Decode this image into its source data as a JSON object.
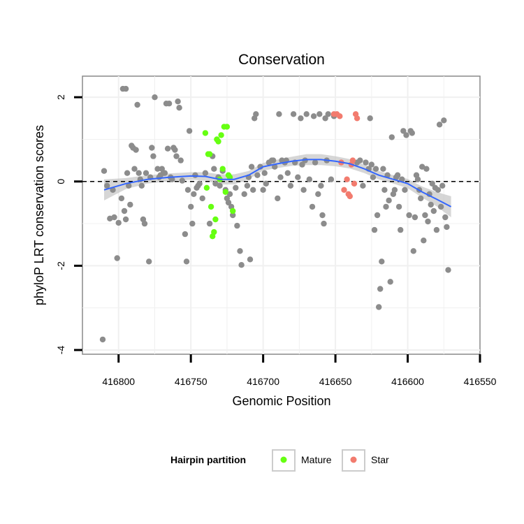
{
  "chart_data": {
    "type": "scatter",
    "title": "Conservation",
    "xlabel": "Genomic Position",
    "ylabel": "phyloP LRT conservation scores",
    "x_reversed": true,
    "xlim": [
      416550,
      416825
    ],
    "ylim": [
      -4.1,
      2.5
    ],
    "x_ticks": [
      416800,
      416750,
      416700,
      416650,
      416600,
      416550
    ],
    "x_tick_labels": [
      "416800",
      "416750",
      "416700",
      "416650",
      "416600",
      "416550"
    ],
    "y_ticks": [
      2,
      0,
      -2,
      -4
    ],
    "y_tick_labels": [
      "2",
      "0",
      "-2",
      "-4"
    ],
    "reference_line": {
      "y": 0,
      "style": "dashed"
    },
    "grid": true,
    "colors": {
      "other": "#8c8c8c",
      "mature": "#66ff11",
      "star": "#f27b6e",
      "smooth": "#3366ff",
      "band": "#c8c8c8",
      "panel_border": "#888888",
      "grid": "#f0f0f0"
    },
    "legend": {
      "title": "Hairpin partition",
      "position": "bottom",
      "items": [
        {
          "label": "Mature",
          "color": "#66ff11"
        },
        {
          "label": "Star",
          "color": "#f27b6e"
        }
      ]
    },
    "series": [
      {
        "group": "other",
        "points": [
          [
            416810,
            0.25
          ],
          [
            416808,
            -0.1
          ],
          [
            416806,
            -0.88
          ],
          [
            416804,
            -0.2
          ],
          [
            416803,
            -0.85
          ],
          [
            416801,
            -1.82
          ],
          [
            416800,
            -0.98
          ],
          [
            416798,
            -0.4
          ],
          [
            416797,
            2.2
          ],
          [
            416796,
            -0.7
          ],
          [
            416795,
            -0.9
          ],
          [
            416794,
            0.2
          ],
          [
            416793,
            -0.1
          ],
          [
            416792,
            -0.55
          ],
          [
            416791,
            0.85
          ],
          [
            416790,
            0.8
          ],
          [
            416789,
            0.3
          ],
          [
            416788,
            0.75
          ],
          [
            416787,
            1.82
          ],
          [
            416786,
            0.2
          ],
          [
            416785,
            0.05
          ],
          [
            416784,
            -0.1
          ],
          [
            416783,
            -0.9
          ],
          [
            416782,
            -1.0
          ],
          [
            416781,
            0.2
          ],
          [
            416779,
            -1.9
          ],
          [
            416778,
            0.1
          ],
          [
            416777,
            0.8
          ],
          [
            416776,
            0.6
          ],
          [
            416775,
            2.0
          ],
          [
            416773,
            0.3
          ],
          [
            416772,
            0.1
          ],
          [
            416771,
            0.15
          ],
          [
            416770,
            0.3
          ],
          [
            416769,
            0.2
          ],
          [
            416768,
            0.2
          ],
          [
            416767,
            1.85
          ],
          [
            416766,
            0.78
          ],
          [
            416765,
            1.85
          ],
          [
            416764,
            0.1
          ],
          [
            416763,
            0.05
          ],
          [
            416762,
            0.8
          ],
          [
            416761,
            0.75
          ],
          [
            416760,
            0.6
          ],
          [
            416759,
            1.9
          ],
          [
            416758,
            1.75
          ],
          [
            416757,
            0.5
          ],
          [
            416756,
            0.02
          ],
          [
            416754,
            -1.25
          ],
          [
            416753,
            -1.9
          ],
          [
            416752,
            -0.2
          ],
          [
            416751,
            1.2
          ],
          [
            416750,
            -0.6
          ],
          [
            416749,
            -1.0
          ],
          [
            416748,
            -0.3
          ],
          [
            416747,
            0.15
          ],
          [
            416746,
            -0.15
          ],
          [
            416745,
            -0.1
          ],
          [
            416744,
            -0.05
          ],
          [
            416742,
            -0.4
          ],
          [
            416740,
            0.2
          ],
          [
            416737,
            -1.0
          ],
          [
            416735,
            0.6
          ],
          [
            416734,
            0.3
          ],
          [
            416733,
            -0.05
          ],
          [
            416731,
            0.1
          ],
          [
            416730,
            -0.1
          ],
          [
            416728,
            0.25
          ],
          [
            416726,
            -0.2
          ],
          [
            416725,
            -0.4
          ],
          [
            416724,
            -0.5
          ],
          [
            416723,
            -0.3
          ],
          [
            416722,
            -0.6
          ],
          [
            416721,
            -0.8
          ],
          [
            416719,
            -0.15
          ],
          [
            416718,
            -1.05
          ],
          [
            416716,
            -1.65
          ],
          [
            416715,
            -1.98
          ],
          [
            416713,
            -0.3
          ],
          [
            416711,
            -0.1
          ],
          [
            416710,
            0.1
          ],
          [
            416709,
            -1.85
          ],
          [
            416708,
            0.35
          ],
          [
            416707,
            -0.2
          ],
          [
            416706,
            1.5
          ],
          [
            416705,
            1.6
          ],
          [
            416704,
            0.15
          ],
          [
            416702,
            0.35
          ],
          [
            416700,
            -0.2
          ],
          [
            416699,
            0.2
          ],
          [
            416698,
            -0.05
          ],
          [
            416696,
            0.45
          ],
          [
            416694,
            0.5
          ],
          [
            416693,
            0.5
          ],
          [
            416692,
            0.35
          ],
          [
            416690,
            -0.4
          ],
          [
            416689,
            1.6
          ],
          [
            416688,
            0.1
          ],
          [
            416687,
            0.5
          ],
          [
            416685,
            0.45
          ],
          [
            416684,
            0.5
          ],
          [
            416683,
            0.2
          ],
          [
            416681,
            -0.1
          ],
          [
            416679,
            1.6
          ],
          [
            416678,
            0.45
          ],
          [
            416676,
            0.1
          ],
          [
            416674,
            1.5
          ],
          [
            416673,
            0.4
          ],
          [
            416672,
            -0.2
          ],
          [
            416671,
            0.5
          ],
          [
            416670,
            1.6
          ],
          [
            416668,
            0.05
          ],
          [
            416666,
            -0.6
          ],
          [
            416665,
            1.55
          ],
          [
            416664,
            0.45
          ],
          [
            416662,
            -0.3
          ],
          [
            416661,
            1.6
          ],
          [
            416660,
            -0.1
          ],
          [
            416659,
            -0.8
          ],
          [
            416658,
            -1.0
          ],
          [
            416657,
            1.5
          ],
          [
            416656,
            0.5
          ],
          [
            416655,
            1.6
          ],
          [
            416653,
            0.05
          ],
          [
            416651,
            1.55
          ],
          [
            416635,
            0.45
          ],
          [
            416633,
            0.5
          ],
          [
            416631,
            -0.1
          ],
          [
            416629,
            0.45
          ],
          [
            416627,
            0.3
          ],
          [
            416626,
            1.5
          ],
          [
            416625,
            0.4
          ],
          [
            416624,
            0.1
          ],
          [
            416623,
            -1.15
          ],
          [
            416622,
            0.3
          ],
          [
            416621,
            -0.8
          ],
          [
            416620,
            -2.98
          ],
          [
            416619,
            -2.55
          ],
          [
            416618,
            -1.9
          ],
          [
            416617,
            0.3
          ],
          [
            416616,
            -0.2
          ],
          [
            416615,
            -0.6
          ],
          [
            416614,
            0.15
          ],
          [
            416613,
            -0.45
          ],
          [
            416612,
            -2.38
          ],
          [
            416611,
            1.05
          ],
          [
            416610,
            -0.3
          ],
          [
            416609,
            -0.2
          ],
          [
            416608,
            0.1
          ],
          [
            416607,
            0.15
          ],
          [
            416606,
            -0.6
          ],
          [
            416605,
            -1.15
          ],
          [
            416604,
            0.05
          ],
          [
            416603,
            1.2
          ],
          [
            416602,
            -0.2
          ],
          [
            416601,
            1.1
          ],
          [
            416599,
            -0.8
          ],
          [
            416598,
            1.2
          ],
          [
            416597,
            1.15
          ],
          [
            416596,
            -1.65
          ],
          [
            416595,
            -0.85
          ],
          [
            416594,
            0.15
          ],
          [
            416593,
            0.05
          ],
          [
            416592,
            -0.2
          ],
          [
            416591,
            -0.4
          ],
          [
            416590,
            0.35
          ],
          [
            416589,
            -1.4
          ],
          [
            416588,
            -0.8
          ],
          [
            416587,
            0.3
          ],
          [
            416586,
            -0.95
          ],
          [
            416585,
            -0.3
          ],
          [
            416584,
            -0.55
          ],
          [
            416583,
            -0.05
          ],
          [
            416582,
            -0.7
          ],
          [
            416581,
            -0.15
          ],
          [
            416580,
            -1.15
          ],
          [
            416579,
            -0.2
          ],
          [
            416578,
            1.35
          ],
          [
            416577,
            -0.6
          ],
          [
            416576,
            -0.1
          ],
          [
            416575,
            1.45
          ],
          [
            416574,
            -0.85
          ],
          [
            416573,
            -1.08
          ],
          [
            416572,
            -2.1
          ],
          [
            416811,
            -3.75
          ],
          [
            416795,
            2.2
          ]
        ]
      },
      {
        "group": "mature",
        "points": [
          [
            416740,
            1.15
          ],
          [
            416739,
            -0.15
          ],
          [
            416738,
            0.65
          ],
          [
            416737,
            0.65
          ],
          [
            416736,
            -0.6
          ],
          [
            416735,
            -1.3
          ],
          [
            416734,
            -1.2
          ],
          [
            416733,
            -0.9
          ],
          [
            416732,
            1.0
          ],
          [
            416731,
            0.95
          ],
          [
            416730,
            0.05
          ],
          [
            416729,
            1.1
          ],
          [
            416728,
            0.3
          ],
          [
            416727,
            1.3
          ],
          [
            416726,
            -0.25
          ],
          [
            416725,
            1.3
          ],
          [
            416724,
            0.15
          ],
          [
            416723,
            0.1
          ],
          [
            416721,
            -0.7
          ]
        ]
      },
      {
        "group": "star",
        "points": [
          [
            416651,
            1.6
          ],
          [
            416649,
            1.6
          ],
          [
            416647,
            1.55
          ],
          [
            416646,
            0.45
          ],
          [
            416644,
            -0.2
          ],
          [
            416642,
            0.05
          ],
          [
            416641,
            -0.3
          ],
          [
            416640,
            -0.35
          ],
          [
            416639,
            0.4
          ],
          [
            416638,
            0.5
          ],
          [
            416637,
            -0.05
          ],
          [
            416636,
            1.6
          ],
          [
            416635,
            1.5
          ]
        ]
      }
    ],
    "smooth": {
      "x": [
        416810,
        416795,
        416780,
        416765,
        416750,
        416740,
        416730,
        416720,
        416710,
        416700,
        416690,
        416680,
        416670,
        416660,
        416650,
        416640,
        416630,
        416620,
        416610,
        416600,
        416590,
        416580,
        416570
      ],
      "y": [
        -0.2,
        -0.05,
        0.05,
        0.1,
        0.13,
        0.12,
        0.05,
        0.05,
        0.15,
        0.35,
        0.42,
        0.48,
        0.52,
        0.52,
        0.48,
        0.42,
        0.3,
        0.15,
        0.05,
        -0.05,
        -0.25,
        -0.42,
        -0.6
      ],
      "band_halfwidth": [
        0.25,
        0.13,
        0.1,
        0.09,
        0.09,
        0.1,
        0.12,
        0.12,
        0.1,
        0.09,
        0.1,
        0.11,
        0.13,
        0.13,
        0.12,
        0.11,
        0.1,
        0.1,
        0.1,
        0.11,
        0.13,
        0.17,
        0.25
      ]
    }
  }
}
